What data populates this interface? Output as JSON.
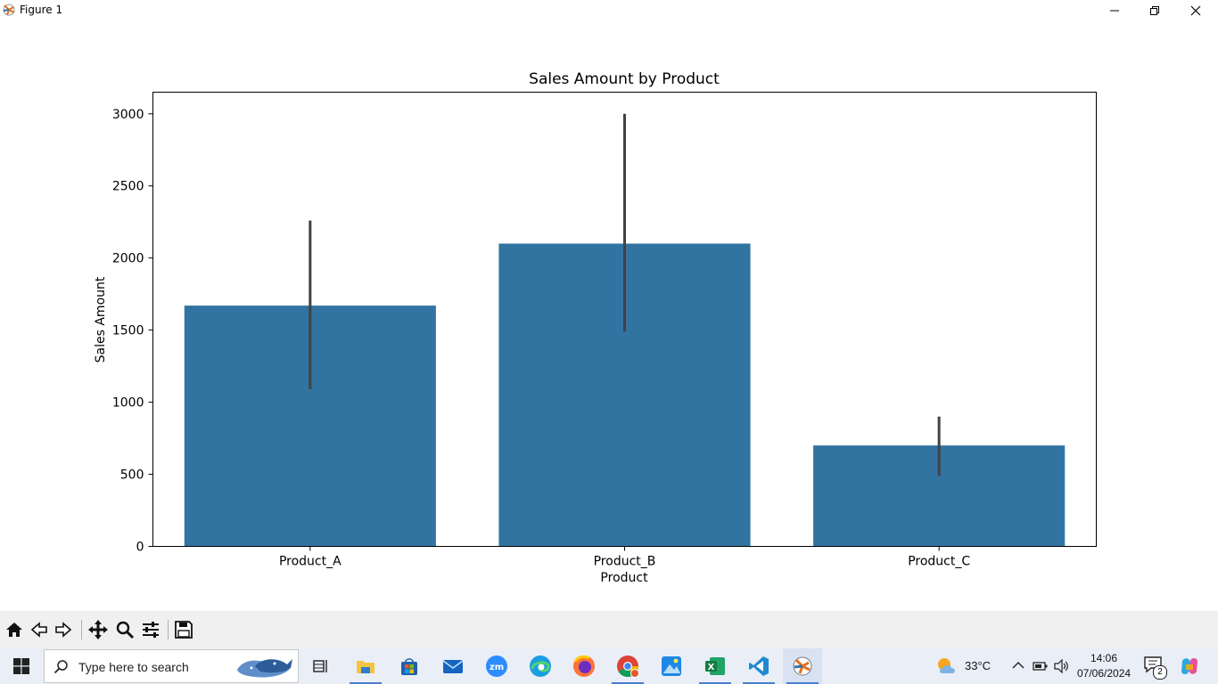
{
  "window": {
    "title": "Figure 1"
  },
  "chart_data": {
    "type": "bar",
    "title": "Sales Amount by Product",
    "xlabel": "Product",
    "ylabel": "Sales Amount",
    "categories": [
      "Product_A",
      "Product_B",
      "Product_C"
    ],
    "values": [
      1670,
      2100,
      700
    ],
    "error_bars": [
      [
        1090,
        2260
      ],
      [
        1490,
        3000
      ],
      [
        490,
        900
      ]
    ],
    "ylim": [
      0,
      3150
    ],
    "yticks": [
      0,
      500,
      1000,
      1500,
      2000,
      2500,
      3000
    ],
    "bar_color": "#3274a1",
    "errorbar_color": "#424242",
    "grid": false,
    "legend": "none"
  },
  "taskbar": {
    "search_placeholder": "Type here to search",
    "weather": "33°C",
    "time": "14:06",
    "date": "07/06/2024",
    "notification_count": "2",
    "apps": [
      "task-view",
      "file-explorer",
      "microsoft-store",
      "mail",
      "zoom",
      "edge",
      "firefox",
      "chrome",
      "photos",
      "excel",
      "vscode",
      "matplotlib-figure"
    ]
  }
}
